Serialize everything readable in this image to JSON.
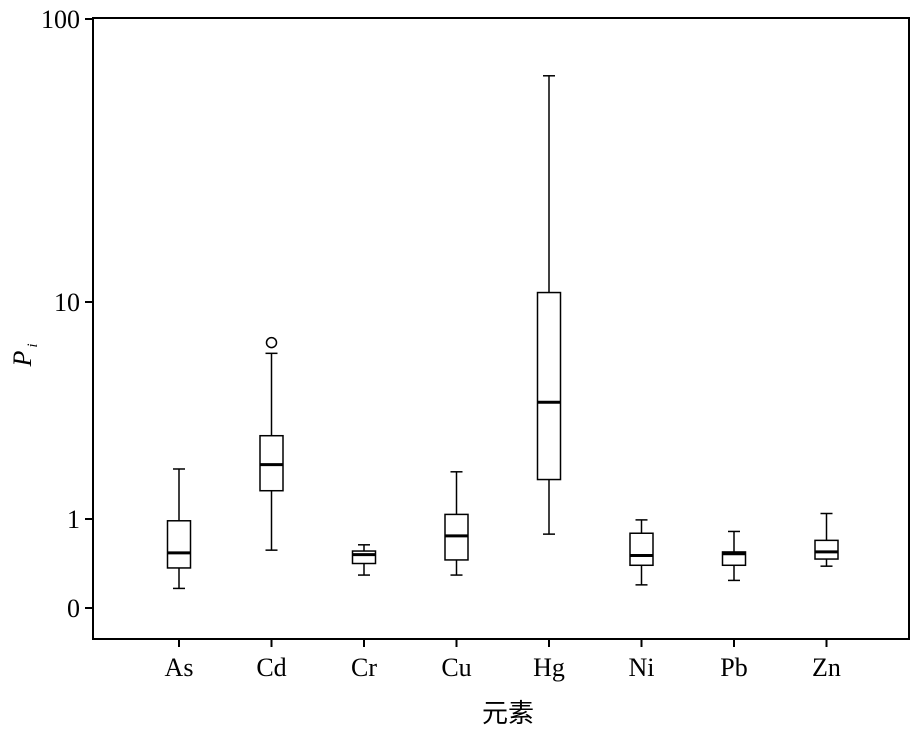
{
  "chart_data": {
    "type": "boxplot",
    "title": "",
    "xlabel": "元素",
    "ylabel": "P",
    "ylabel_subscript": "i",
    "yscale": "log-with-zero",
    "yticks": [
      0,
      1,
      10,
      100
    ],
    "ytick_labels": [
      "0",
      "1",
      "10",
      "100"
    ],
    "ylim": [
      0,
      100
    ],
    "grid": false,
    "legend": "none",
    "categories": [
      "As",
      "Cd",
      "Cr",
      "Cu",
      "Hg",
      "Ni",
      "Pb",
      "Zn"
    ],
    "boxes": [
      {
        "name": "As",
        "whisker_low": 0.22,
        "q1": 0.45,
        "median": 0.62,
        "q3": 0.98,
        "whisker_high": 1.7,
        "outliers": []
      },
      {
        "name": "Cd",
        "whisker_low": 0.65,
        "q1": 1.35,
        "median": 1.78,
        "q3": 2.42,
        "whisker_high": 5.8,
        "outliers": [
          6.5
        ]
      },
      {
        "name": "Cr",
        "whisker_low": 0.37,
        "q1": 0.5,
        "median": 0.6,
        "q3": 0.64,
        "whisker_high": 0.71,
        "outliers": []
      },
      {
        "name": "Cu",
        "whisker_low": 0.37,
        "q1": 0.54,
        "median": 0.81,
        "q3": 1.05,
        "whisker_high": 1.65,
        "outliers": []
      },
      {
        "name": "Hg",
        "whisker_low": 0.83,
        "q1": 1.52,
        "median": 3.45,
        "q3": 10.8,
        "whisker_high": 63.0,
        "outliers": []
      },
      {
        "name": "Ni",
        "whisker_low": 0.26,
        "q1": 0.48,
        "median": 0.59,
        "q3": 0.84,
        "whisker_high": 0.99,
        "outliers": []
      },
      {
        "name": "Pb",
        "whisker_low": 0.31,
        "q1": 0.48,
        "median": 0.61,
        "q3": 0.63,
        "whisker_high": 0.86,
        "outliers": []
      },
      {
        "name": "Zn",
        "whisker_low": 0.47,
        "q1": 0.55,
        "median": 0.63,
        "q3": 0.76,
        "whisker_high": 1.06,
        "outliers": []
      }
    ]
  }
}
